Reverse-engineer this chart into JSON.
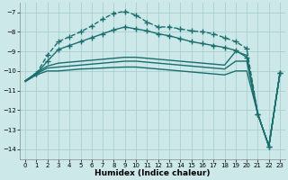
{
  "xlabel": "Humidex (Indice chaleur)",
  "background_color": "#cce8e8",
  "grid_color": "#aacece",
  "line_color": "#1a6e6e",
  "xlim": [
    -0.5,
    23.5
  ],
  "ylim": [
    -14.5,
    -6.5
  ],
  "yticks": [
    -7,
    -8,
    -9,
    -10,
    -11,
    -12,
    -13,
    -14
  ],
  "xticks": [
    0,
    1,
    2,
    3,
    4,
    5,
    6,
    7,
    8,
    9,
    10,
    11,
    12,
    13,
    14,
    15,
    16,
    17,
    18,
    19,
    20,
    21,
    22,
    23
  ],
  "series": [
    {
      "x": [
        1,
        2,
        3,
        4,
        5,
        6,
        7,
        8,
        9,
        10,
        11,
        12,
        13,
        14,
        15,
        16,
        17,
        18,
        19,
        20,
        21,
        22,
        23
      ],
      "y": [
        -10.15,
        -9.2,
        -8.5,
        -8.25,
        -8.0,
        -7.7,
        -7.35,
        -7.05,
        -6.95,
        -7.15,
        -7.5,
        -7.75,
        -7.75,
        -7.85,
        -7.95,
        -8.0,
        -8.1,
        -8.3,
        -8.5,
        -8.85,
        -12.2,
        -13.85,
        -10.1
      ],
      "marker": "+",
      "markersize": 5,
      "linewidth": 1.0,
      "linestyle": "--"
    },
    {
      "x": [
        1,
        2,
        3,
        4,
        5,
        6,
        7,
        8,
        9,
        10,
        11,
        12,
        13,
        14,
        15,
        16,
        17,
        18,
        19,
        20,
        21,
        22,
        23
      ],
      "y": [
        -10.15,
        -9.5,
        -8.9,
        -8.7,
        -8.5,
        -8.3,
        -8.1,
        -7.9,
        -7.75,
        -7.85,
        -7.95,
        -8.1,
        -8.2,
        -8.35,
        -8.5,
        -8.6,
        -8.7,
        -8.8,
        -8.95,
        -9.3,
        -12.2,
        -13.85,
        -10.1
      ],
      "marker": "+",
      "markersize": 5,
      "linewidth": 1.0,
      "linestyle": "-"
    },
    {
      "x": [
        0,
        1,
        2,
        3,
        4,
        5,
        6,
        7,
        8,
        9,
        10,
        11,
        12,
        13,
        14,
        15,
        16,
        17,
        18,
        19,
        20,
        21,
        22,
        23
      ],
      "y": [
        -10.5,
        -10.1,
        -9.75,
        -9.6,
        -9.55,
        -9.5,
        -9.45,
        -9.4,
        -9.35,
        -9.3,
        -9.3,
        -9.35,
        -9.4,
        -9.45,
        -9.5,
        -9.55,
        -9.6,
        -9.65,
        -9.7,
        -9.0,
        -9.2,
        -12.2,
        -13.85,
        -10.1
      ],
      "marker": null,
      "markersize": 0,
      "linewidth": 1.0,
      "linestyle": "-"
    },
    {
      "x": [
        0,
        1,
        2,
        3,
        4,
        5,
        6,
        7,
        8,
        9,
        10,
        11,
        12,
        13,
        14,
        15,
        16,
        17,
        18,
        19,
        20,
        21,
        22,
        23
      ],
      "y": [
        -10.5,
        -10.15,
        -9.85,
        -9.8,
        -9.75,
        -9.7,
        -9.65,
        -9.6,
        -9.55,
        -9.5,
        -9.5,
        -9.55,
        -9.6,
        -9.65,
        -9.7,
        -9.75,
        -9.8,
        -9.85,
        -9.9,
        -9.5,
        -9.5,
        -12.2,
        -13.85,
        -10.1
      ],
      "marker": null,
      "markersize": 0,
      "linewidth": 1.0,
      "linestyle": "-"
    },
    {
      "x": [
        0,
        1,
        2,
        3,
        4,
        5,
        6,
        7,
        8,
        9,
        10,
        11,
        12,
        13,
        14,
        15,
        16,
        17,
        18,
        19,
        20,
        21,
        22,
        23
      ],
      "y": [
        -10.55,
        -10.2,
        -10.0,
        -10.0,
        -9.95,
        -9.9,
        -9.88,
        -9.85,
        -9.82,
        -9.8,
        -9.8,
        -9.85,
        -9.9,
        -9.95,
        -10.0,
        -10.05,
        -10.1,
        -10.15,
        -10.2,
        -10.0,
        -10.0,
        -12.2,
        -13.85,
        -10.1
      ],
      "marker": null,
      "markersize": 0,
      "linewidth": 1.0,
      "linestyle": "-"
    }
  ]
}
